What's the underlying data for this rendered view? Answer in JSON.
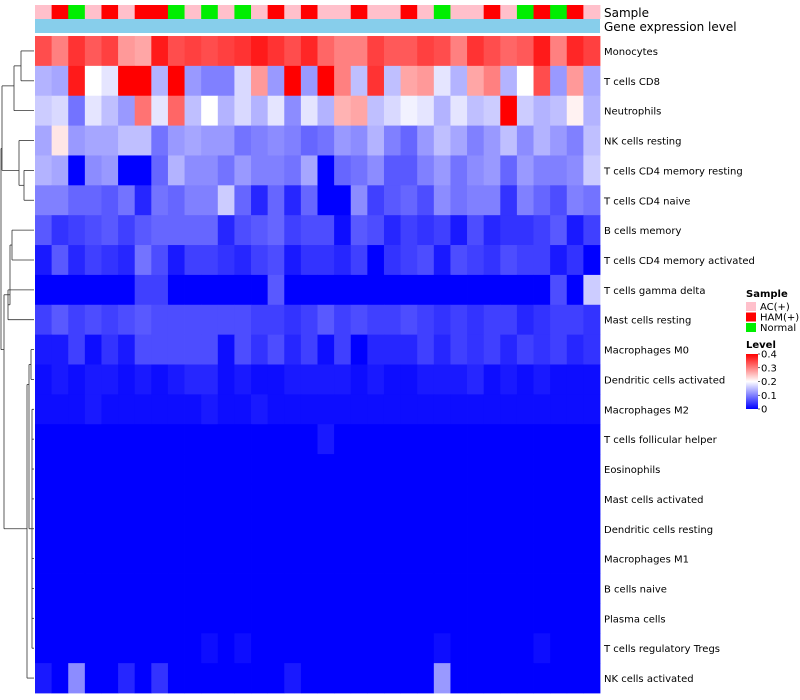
{
  "chart_data": {
    "type": "heatmap",
    "header_labels": {
      "sample": "Sample",
      "expression": "Gene expression level"
    },
    "rows": [
      "Monocytes",
      "T cells CD8",
      "Neutrophils",
      "NK cells resting",
      "T cells CD4 memory resting",
      "T cells CD4 naive",
      "B cells memory",
      "T cells CD4 memory activated",
      "T cells gamma delta",
      "Mast cells resting",
      "Macrophages M0",
      "Dendritic cells activated",
      "Macrophages M2",
      "T cells follicular helper",
      "Eosinophils",
      "Mast cells activated",
      "Dendritic cells resting",
      "Macrophages M1",
      "B cells naive",
      "Plasma cells",
      "T cells regulatory  Tregs",
      "NK cells activated"
    ],
    "sample_groups": [
      "AC(+)",
      "HAM(+)",
      "Normal",
      "AC(+)",
      "HAM(+)",
      "AC(+)",
      "HAM(+)",
      "HAM(+)",
      "Normal",
      "AC(+)",
      "Normal",
      "AC(+)",
      "Normal",
      "AC(+)",
      "HAM(+)",
      "AC(+)",
      "HAM(+)",
      "AC(+)",
      "AC(+)",
      "HAM(+)",
      "AC(+)",
      "AC(+)",
      "HAM(+)",
      "AC(+)",
      "Normal",
      "AC(+)",
      "AC(+)",
      "HAM(+)",
      "AC(+)",
      "Normal",
      "HAM(+)",
      "Normal",
      "HAM(+)",
      "AC(+)"
    ],
    "values": [
      [
        0.34,
        0.3,
        0.36,
        0.33,
        0.35,
        0.28,
        0.27,
        0.38,
        0.34,
        0.35,
        0.34,
        0.35,
        0.36,
        0.38,
        0.36,
        0.34,
        0.37,
        0.32,
        0.3,
        0.3,
        0.35,
        0.33,
        0.33,
        0.35,
        0.34,
        0.3,
        0.36,
        0.34,
        0.32,
        0.33,
        0.38,
        0.3,
        0.37,
        0.35
      ],
      [
        0.14,
        0.13,
        0.38,
        0.2,
        0.18,
        0.4,
        0.4,
        0.14,
        0.4,
        0.12,
        0.1,
        0.1,
        0.17,
        0.28,
        0.12,
        0.4,
        0.12,
        0.4,
        0.3,
        0.15,
        0.36,
        0.15,
        0.27,
        0.28,
        0.18,
        0.14,
        0.27,
        0.3,
        0.14,
        0.2,
        0.34,
        0.12,
        0.28,
        0.13
      ],
      [
        0.16,
        0.17,
        0.09,
        0.18,
        0.15,
        0.12,
        0.31,
        0.18,
        0.32,
        0.15,
        0.2,
        0.14,
        0.17,
        0.14,
        0.18,
        0.11,
        0.18,
        0.14,
        0.26,
        0.27,
        0.15,
        0.17,
        0.19,
        0.18,
        0.14,
        0.18,
        0.15,
        0.16,
        0.4,
        0.16,
        0.14,
        0.15,
        0.21,
        0.14
      ],
      [
        0.13,
        0.22,
        0.12,
        0.13,
        0.13,
        0.15,
        0.15,
        0.09,
        0.12,
        0.13,
        0.12,
        0.12,
        0.09,
        0.1,
        0.11,
        0.1,
        0.08,
        0.09,
        0.12,
        0.11,
        0.14,
        0.1,
        0.08,
        0.12,
        0.15,
        0.13,
        0.1,
        0.12,
        0.15,
        0.11,
        0.14,
        0.12,
        0.1,
        0.15
      ],
      [
        0.14,
        0.13,
        0.0,
        0.11,
        0.12,
        0.0,
        0.0,
        0.08,
        0.14,
        0.11,
        0.11,
        0.09,
        0.12,
        0.1,
        0.1,
        0.09,
        0.13,
        0.0,
        0.08,
        0.09,
        0.11,
        0.07,
        0.07,
        0.1,
        0.12,
        0.09,
        0.11,
        0.12,
        0.08,
        0.12,
        0.1,
        0.1,
        0.11,
        0.16
      ],
      [
        0.1,
        0.1,
        0.08,
        0.08,
        0.07,
        0.09,
        0.03,
        0.09,
        0.08,
        0.1,
        0.1,
        0.16,
        0.08,
        0.03,
        0.08,
        0.03,
        0.08,
        0.0,
        0.0,
        0.11,
        0.05,
        0.07,
        0.08,
        0.06,
        0.11,
        0.09,
        0.1,
        0.1,
        0.04,
        0.1,
        0.08,
        0.06,
        0.1,
        0.09
      ],
      [
        0.07,
        0.04,
        0.05,
        0.06,
        0.07,
        0.05,
        0.07,
        0.08,
        0.08,
        0.08,
        0.08,
        0.03,
        0.06,
        0.07,
        0.08,
        0.05,
        0.06,
        0.06,
        0.01,
        0.07,
        0.06,
        0.03,
        0.05,
        0.04,
        0.05,
        0.02,
        0.06,
        0.03,
        0.04,
        0.04,
        0.05,
        0.07,
        0.02,
        0.05
      ],
      [
        0.02,
        0.07,
        0.03,
        0.05,
        0.04,
        0.03,
        0.09,
        0.06,
        0.02,
        0.05,
        0.05,
        0.04,
        0.03,
        0.05,
        0.06,
        0.02,
        0.04,
        0.04,
        0.03,
        0.05,
        0.0,
        0.04,
        0.05,
        0.06,
        0.02,
        0.06,
        0.05,
        0.04,
        0.06,
        0.05,
        0.05,
        0.02,
        0.04,
        0.0
      ],
      [
        0.0,
        0.0,
        0.0,
        0.0,
        0.0,
        0.0,
        0.05,
        0.05,
        0.0,
        0.0,
        0.0,
        0.0,
        0.0,
        0.0,
        0.07,
        0.0,
        0.0,
        0.0,
        0.0,
        0.0,
        0.0,
        0.0,
        0.0,
        0.0,
        0.0,
        0.0,
        0.0,
        0.0,
        0.0,
        0.0,
        0.0,
        0.06,
        0.0,
        0.16
      ],
      [
        0.05,
        0.07,
        0.05,
        0.06,
        0.05,
        0.06,
        0.07,
        0.06,
        0.06,
        0.06,
        0.06,
        0.06,
        0.06,
        0.05,
        0.05,
        0.04,
        0.05,
        0.07,
        0.05,
        0.06,
        0.05,
        0.05,
        0.06,
        0.05,
        0.04,
        0.05,
        0.04,
        0.05,
        0.05,
        0.03,
        0.04,
        0.05,
        0.05,
        0.04
      ],
      [
        0.02,
        0.02,
        0.05,
        0.01,
        0.04,
        0.02,
        0.06,
        0.06,
        0.06,
        0.06,
        0.06,
        0.01,
        0.06,
        0.04,
        0.06,
        0.03,
        0.05,
        0.01,
        0.05,
        0.0,
        0.03,
        0.03,
        0.03,
        0.05,
        0.03,
        0.05,
        0.04,
        0.05,
        0.03,
        0.05,
        0.04,
        0.05,
        0.03,
        0.04
      ],
      [
        0.01,
        0.02,
        0.01,
        0.02,
        0.02,
        0.01,
        0.02,
        0.01,
        0.02,
        0.03,
        0.03,
        0.01,
        0.02,
        0.01,
        0.01,
        0.02,
        0.02,
        0.02,
        0.02,
        0.01,
        0.02,
        0.01,
        0.01,
        0.02,
        0.02,
        0.02,
        0.03,
        0.01,
        0.02,
        0.01,
        0.02,
        0.01,
        0.01,
        0.01
      ],
      [
        0.01,
        0.01,
        0.01,
        0.02,
        0.01,
        0.01,
        0.01,
        0.01,
        0.01,
        0.01,
        0.02,
        0.01,
        0.01,
        0.02,
        0.01,
        0.01,
        0.01,
        0.01,
        0.01,
        0.01,
        0.01,
        0.01,
        0.01,
        0.01,
        0.01,
        0.01,
        0.01,
        0.01,
        0.01,
        0.01,
        0.01,
        0.01,
        0.01,
        0.01
      ],
      [
        0.0,
        0.0,
        0.0,
        0.0,
        0.0,
        0.0,
        0.0,
        0.0,
        0.0,
        0.0,
        0.0,
        0.0,
        0.0,
        0.0,
        0.0,
        0.0,
        0.0,
        0.02,
        0.0,
        0.0,
        0.0,
        0.0,
        0.0,
        0.0,
        0.0,
        0.0,
        0.0,
        0.0,
        0.0,
        0.0,
        0.0,
        0.0,
        0.0,
        0.0
      ],
      [
        0,
        0,
        0,
        0,
        0,
        0,
        0,
        0,
        0,
        0,
        0,
        0,
        0,
        0,
        0,
        0,
        0,
        0,
        0,
        0,
        0,
        0,
        0,
        0,
        0,
        0,
        0,
        0,
        0,
        0,
        0,
        0,
        0,
        0
      ],
      [
        0,
        0,
        0,
        0,
        0,
        0,
        0,
        0,
        0,
        0,
        0,
        0,
        0,
        0,
        0,
        0,
        0,
        0,
        0,
        0,
        0,
        0,
        0,
        0,
        0,
        0,
        0,
        0,
        0,
        0,
        0,
        0,
        0,
        0
      ],
      [
        0,
        0,
        0,
        0,
        0,
        0,
        0,
        0,
        0,
        0,
        0,
        0,
        0,
        0,
        0,
        0,
        0,
        0,
        0,
        0,
        0,
        0,
        0,
        0,
        0,
        0,
        0,
        0,
        0,
        0,
        0,
        0,
        0,
        0
      ],
      [
        0,
        0,
        0,
        0,
        0,
        0,
        0,
        0,
        0,
        0,
        0,
        0,
        0,
        0,
        0,
        0,
        0,
        0,
        0,
        0,
        0,
        0,
        0,
        0,
        0,
        0,
        0,
        0,
        0,
        0,
        0,
        0,
        0,
        0
      ],
      [
        0,
        0,
        0,
        0,
        0,
        0,
        0,
        0,
        0,
        0,
        0,
        0,
        0,
        0,
        0,
        0,
        0,
        0,
        0,
        0,
        0,
        0,
        0,
        0,
        0,
        0,
        0,
        0,
        0,
        0,
        0,
        0,
        0,
        0
      ],
      [
        0,
        0,
        0,
        0,
        0,
        0,
        0,
        0,
        0,
        0,
        0,
        0,
        0,
        0,
        0,
        0,
        0,
        0,
        0,
        0,
        0,
        0,
        0,
        0,
        0,
        0,
        0,
        0,
        0,
        0,
        0,
        0,
        0,
        0
      ],
      [
        0.0,
        0.0,
        0.0,
        0.0,
        0.0,
        0.0,
        0.0,
        0.0,
        0.0,
        0.0,
        0.01,
        0.0,
        0.01,
        0.0,
        0.0,
        0.0,
        0.0,
        0.0,
        0.0,
        0.0,
        0.0,
        0.0,
        0.0,
        0.0,
        0.01,
        0.0,
        0.0,
        0.0,
        0.0,
        0.0,
        0.01,
        0.0,
        0.0,
        0.0
      ],
      [
        0.02,
        0.0,
        0.11,
        0.0,
        0.0,
        0.03,
        0.0,
        0.04,
        0.0,
        0.0,
        0.0,
        0.0,
        0.0,
        0.0,
        0.0,
        0.02,
        0.0,
        0.0,
        0.0,
        0.0,
        0.0,
        0.0,
        0.0,
        0.0,
        0.12,
        0.0,
        0.0,
        0.0,
        0.0,
        0.0,
        0.0,
        0.0,
        0.0,
        0.0
      ]
    ],
    "legend": {
      "sample_title": "Sample",
      "sample_items": [
        {
          "label": "AC(+)",
          "color": "#FFC0CB"
        },
        {
          "label": "HAM(+)",
          "color": "#FF0000"
        },
        {
          "label": "Normal",
          "color": "#00EE00"
        }
      ],
      "level_title": "Level",
      "level_ticks": [
        "0.4",
        "0.3",
        "0.2",
        "0.1",
        "0"
      ],
      "level_range": [
        0,
        0.4
      ]
    },
    "expression_bar_color": "#87CEEB",
    "colors": {
      "low": "#0000FF",
      "mid": "#FFFFFF",
      "high": "#FF0000"
    }
  }
}
